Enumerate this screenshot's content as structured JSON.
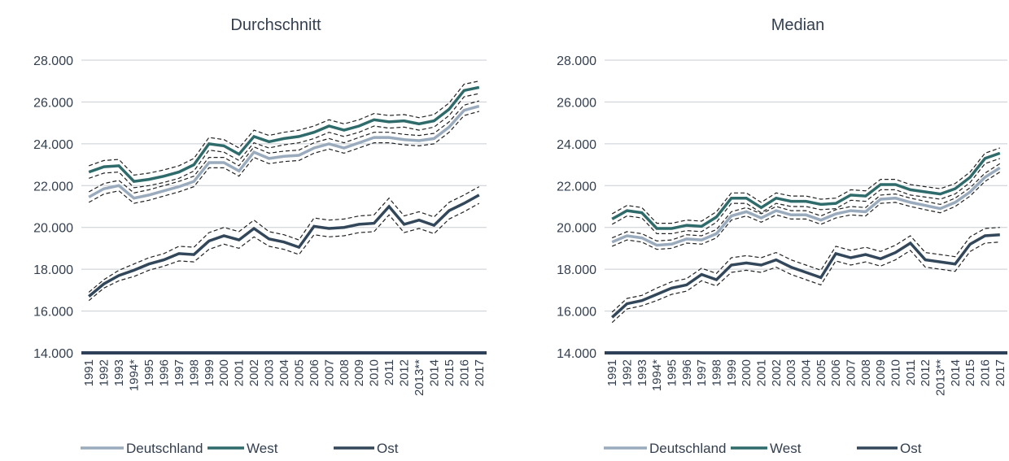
{
  "chart_data": [
    {
      "type": "line",
      "title": "Durchschnitt",
      "categories": [
        "1991",
        "1992",
        "1993",
        "1994*",
        "1995",
        "1996",
        "1997",
        "1998",
        "1999",
        "2000",
        "2001",
        "2002",
        "2003",
        "2004",
        "2005",
        "2006",
        "2007",
        "2008",
        "2009",
        "2010",
        "2011",
        "2012",
        "2013**",
        "2014",
        "2015",
        "2016",
        "2017"
      ],
      "ylim": [
        14000,
        28000
      ],
      "yticks": [
        {
          "value": 14000,
          "label": "14.000"
        },
        {
          "value": 16000,
          "label": "16.000"
        },
        {
          "value": 18000,
          "label": "18.000"
        },
        {
          "value": 20000,
          "label": "20.000"
        },
        {
          "value": 22000,
          "label": "22.000"
        },
        {
          "value": 24000,
          "label": "24.000"
        },
        {
          "value": 26000,
          "label": "26.000"
        },
        {
          "value": 28000,
          "label": "28.000"
        }
      ],
      "grid": true,
      "series": [
        {
          "name": "Deutschland",
          "color": "#9aabbd",
          "values": [
            21450,
            21850,
            22000,
            21400,
            21550,
            21750,
            21950,
            22200,
            23100,
            23100,
            22700,
            23600,
            23300,
            23400,
            23450,
            23800,
            24000,
            23800,
            24050,
            24300,
            24300,
            24200,
            24150,
            24250,
            24800,
            25600,
            25800
          ],
          "errors": [
            250,
            250,
            250,
            250,
            250,
            250,
            250,
            250,
            250,
            250,
            250,
            250,
            250,
            250,
            250,
            250,
            250,
            250,
            250,
            250,
            250,
            250,
            250,
            250,
            250,
            250,
            250
          ]
        },
        {
          "name": "West",
          "color": "#2f6b6b",
          "values": [
            22650,
            22900,
            22950,
            22200,
            22300,
            22450,
            22650,
            23000,
            24000,
            23900,
            23500,
            24350,
            24100,
            24250,
            24350,
            24550,
            24850,
            24650,
            24850,
            25150,
            25050,
            25100,
            24950,
            25100,
            25650,
            26550,
            26700
          ],
          "errors": [
            300,
            300,
            300,
            300,
            300,
            300,
            300,
            300,
            300,
            300,
            300,
            300,
            300,
            300,
            300,
            300,
            300,
            300,
            300,
            300,
            300,
            300,
            300,
            300,
            300,
            300,
            300
          ]
        },
        {
          "name": "Ost",
          "color": "#33475b",
          "values": [
            16700,
            17300,
            17700,
            17950,
            18250,
            18450,
            18750,
            18700,
            19350,
            19600,
            19400,
            19950,
            19450,
            19300,
            19050,
            20050,
            19950,
            20000,
            20150,
            20200,
            21000,
            20150,
            20350,
            20100,
            20800,
            21150,
            21550
          ],
          "errors": [
            200,
            200,
            250,
            300,
            300,
            300,
            350,
            350,
            400,
            400,
            400,
            400,
            350,
            350,
            350,
            400,
            400,
            400,
            400,
            400,
            400,
            400,
            400,
            400,
            400,
            400,
            400
          ]
        }
      ]
    },
    {
      "type": "line",
      "title": "Median",
      "categories": [
        "1991",
        "1992",
        "1993",
        "1994*",
        "1995",
        "1996",
        "1997",
        "1998",
        "1999",
        "2000",
        "2001",
        "2002",
        "2003",
        "2004",
        "2005",
        "2006",
        "2007",
        "2008",
        "2009",
        "2010",
        "2011",
        "2012",
        "2013**",
        "2014",
        "2015",
        "2016",
        "2017"
      ],
      "ylim": [
        14000,
        28000
      ],
      "yticks": [
        {
          "value": 14000,
          "label": "14.000"
        },
        {
          "value": 16000,
          "label": "16.000"
        },
        {
          "value": 18000,
          "label": "18.000"
        },
        {
          "value": 20000,
          "label": "20.000"
        },
        {
          "value": 22000,
          "label": "22.000"
        },
        {
          "value": 24000,
          "label": "24.000"
        },
        {
          "value": 26000,
          "label": "26.000"
        },
        {
          "value": 28000,
          "label": "28.000"
        }
      ],
      "grid": true,
      "series": [
        {
          "name": "Deutschland",
          "color": "#9aabbd",
          "values": [
            19300,
            19600,
            19500,
            19150,
            19200,
            19450,
            19400,
            19700,
            20550,
            20750,
            20450,
            20800,
            20600,
            20600,
            20350,
            20650,
            20800,
            20750,
            21350,
            21400,
            21200,
            21050,
            20900,
            21200,
            21700,
            22400,
            22850
          ],
          "errors": [
            200,
            200,
            200,
            200,
            200,
            200,
            200,
            200,
            200,
            200,
            200,
            200,
            200,
            200,
            200,
            200,
            200,
            200,
            200,
            200,
            200,
            200,
            200,
            200,
            200,
            200,
            200
          ]
        },
        {
          "name": "West",
          "color": "#2f6b6b",
          "values": [
            20400,
            20800,
            20700,
            19950,
            19950,
            20100,
            20050,
            20500,
            21400,
            21400,
            20950,
            21400,
            21250,
            21250,
            21100,
            21150,
            21550,
            21500,
            22050,
            22050,
            21800,
            21700,
            21600,
            21850,
            22400,
            23300,
            23550
          ],
          "errors": [
            250,
            250,
            250,
            250,
            250,
            250,
            250,
            250,
            250,
            250,
            250,
            250,
            250,
            250,
            250,
            250,
            250,
            250,
            250,
            250,
            250,
            250,
            250,
            250,
            250,
            250,
            250
          ]
        },
        {
          "name": "Ost",
          "color": "#33475b",
          "values": [
            15700,
            16350,
            16500,
            16800,
            17100,
            17250,
            17750,
            17500,
            18200,
            18300,
            18200,
            18450,
            18100,
            17850,
            17600,
            18750,
            18550,
            18700,
            18500,
            18800,
            19250,
            18450,
            18350,
            18250,
            19200,
            19600,
            19650
          ],
          "errors": [
            250,
            250,
            250,
            300,
            300,
            300,
            300,
            300,
            350,
            350,
            350,
            350,
            350,
            350,
            350,
            350,
            350,
            350,
            350,
            350,
            350,
            350,
            350,
            350,
            350,
            350,
            350
          ]
        }
      ]
    }
  ]
}
